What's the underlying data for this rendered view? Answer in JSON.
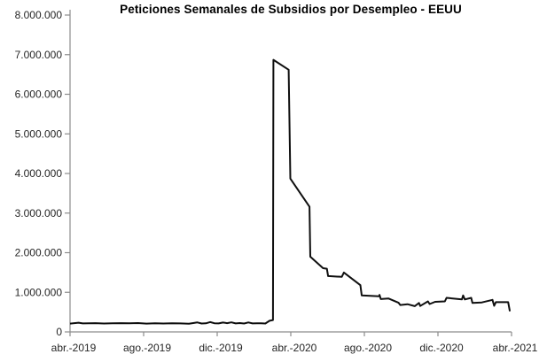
{
  "title": "Peticiones Semanales de Subsidios por Desempleo - EEUU",
  "colors": {
    "line": "#0f0f0f",
    "axis": "#8c8c8c",
    "tick_label": "#262626",
    "title": "#000000",
    "background": "#ffffff"
  },
  "chart_data": {
    "type": "line",
    "title": "Peticiones Semanales de Subsidios por Desempleo - EEUU",
    "xlabel": "",
    "ylabel": "",
    "legend": "none",
    "grid": false,
    "ylim": [
      0,
      8000000
    ],
    "xlim_weeks": [
      0,
      104
    ],
    "x_unit": "weeks since April 2019",
    "y_ticks": [
      {
        "label": "0",
        "value": 0
      },
      {
        "label": "1.000.000",
        "value": 1000000
      },
      {
        "label": "2.000.000",
        "value": 2000000
      },
      {
        "label": "3.000.000",
        "value": 3000000
      },
      {
        "label": "4.000.000",
        "value": 4000000
      },
      {
        "label": "5.000.000",
        "value": 5000000
      },
      {
        "label": "6.000.000",
        "value": 6000000
      },
      {
        "label": "7.000.000",
        "value": 7000000
      },
      {
        "label": "8.000.000",
        "value": 8000000
      }
    ],
    "x_ticks": [
      "abr.-2019",
      "ago.-2019",
      "dic.-2019",
      "abr.-2020",
      "ago.-2020",
      "dic.-2020",
      "abr.-2021"
    ],
    "series": [
      {
        "name": "Peticiones semanales de subsidios por desempleo",
        "points": [
          [
            0,
            210000
          ],
          [
            2,
            232000
          ],
          [
            3,
            215000
          ],
          [
            6,
            222000
          ],
          [
            8,
            212000
          ],
          [
            10,
            219000
          ],
          [
            12,
            221000
          ],
          [
            14,
            216000
          ],
          [
            16,
            224000
          ],
          [
            18,
            209000
          ],
          [
            20,
            216000
          ],
          [
            22,
            212000
          ],
          [
            24,
            220000
          ],
          [
            26,
            214000
          ],
          [
            28,
            207000
          ],
          [
            30,
            238000
          ],
          [
            31,
            212000
          ],
          [
            32,
            216000
          ],
          [
            33,
            248000
          ],
          [
            34,
            218000
          ],
          [
            35,
            214000
          ],
          [
            36,
            236000
          ],
          [
            37,
            222000
          ],
          [
            38,
            242000
          ],
          [
            39,
            214000
          ],
          [
            40,
            224000
          ],
          [
            41,
            212000
          ],
          [
            42,
            238000
          ],
          [
            43,
            214000
          ],
          [
            44,
            220000
          ],
          [
            45,
            216000
          ],
          [
            46,
            212000
          ],
          [
            47,
            282000
          ],
          [
            47.8,
            300000
          ],
          [
            47.9,
            6870000
          ],
          [
            51.5,
            6620000
          ],
          [
            51.9,
            3870000
          ],
          [
            56.4,
            3160000
          ],
          [
            56.6,
            1900000
          ],
          [
            59.6,
            1610000
          ],
          [
            60.5,
            1595000
          ],
          [
            60.8,
            1410000
          ],
          [
            64.0,
            1390000
          ],
          [
            64.5,
            1500000
          ],
          [
            68.4,
            1180000
          ],
          [
            68.7,
            920000
          ],
          [
            72.8,
            900000
          ],
          [
            72.9,
            935000
          ],
          [
            73.2,
            830000
          ],
          [
            75.0,
            845000
          ],
          [
            77.4,
            735000
          ],
          [
            77.8,
            680000
          ],
          [
            79.5,
            700000
          ],
          [
            81.2,
            650000
          ],
          [
            82.2,
            730000
          ],
          [
            82.5,
            655000
          ],
          [
            84.3,
            770000
          ],
          [
            84.7,
            705000
          ],
          [
            86.0,
            760000
          ],
          [
            88.3,
            770000
          ],
          [
            88.7,
            860000
          ],
          [
            92.3,
            820000
          ],
          [
            92.6,
            920000
          ],
          [
            93.0,
            820000
          ],
          [
            94.5,
            860000
          ],
          [
            94.8,
            730000
          ],
          [
            97.0,
            745000
          ],
          [
            99.5,
            810000
          ],
          [
            99.9,
            660000
          ],
          [
            100.3,
            750000
          ],
          [
            103.2,
            750000
          ],
          [
            103.6,
            520000
          ]
        ]
      }
    ]
  }
}
